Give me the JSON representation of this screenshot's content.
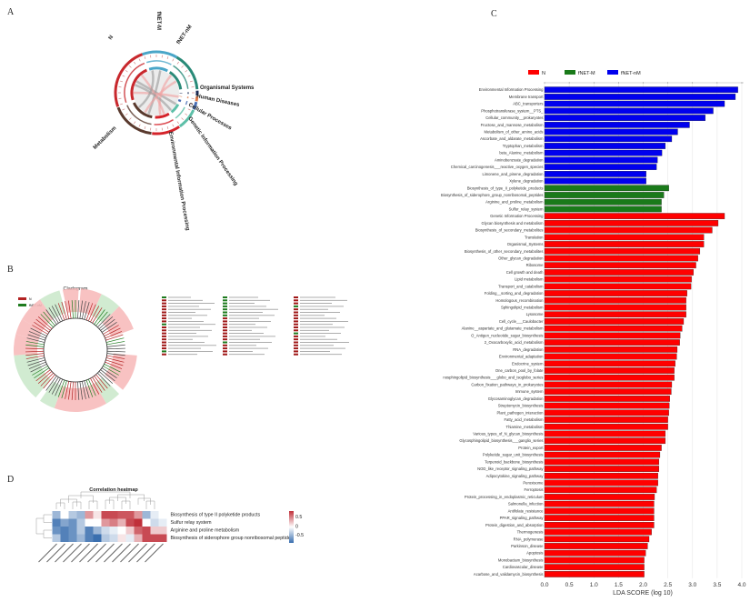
{
  "panels": {
    "a": "A",
    "b": "B",
    "c": "C",
    "d": "D"
  },
  "circos": {
    "labels": [
      "N",
      "fNET-M",
      "fNET-nM",
      "Organismal Systems",
      "Human Diseases",
      "Cellular Processes",
      "Genetic Information Processing",
      "Environmental Information Processing",
      "Metabolism"
    ]
  },
  "cladogram": {
    "title": "Cladogram",
    "legend": [
      {
        "label": "N",
        "color": "#b22222"
      },
      {
        "label": "fNET-nM",
        "color": "#1e7b1e"
      }
    ]
  },
  "heatmap": {
    "title": "Correlation heatmap",
    "rows": [
      "Biosynthesis of type II polyketide products",
      "Sulfur relay system",
      "Arginine and proline metabolism",
      "Biosynthesis of siderophore group nonribosomal peptides"
    ],
    "values": [
      [
        -0.4,
        0,
        -0.3,
        -0.4,
        0.4,
        0.1,
        0.7,
        0.7,
        0.65,
        0.65,
        0.4,
        -0.4,
        -0.1,
        0
      ],
      [
        -0.7,
        -0.5,
        -0.6,
        -0.3,
        0,
        0,
        0.4,
        0.5,
        0.3,
        0.7,
        0.8,
        0,
        -0.2,
        -0.1
      ],
      [
        -0.6,
        -0.7,
        -0.6,
        -0.3,
        -0.7,
        -0.4,
        -0.2,
        -0.1,
        0,
        0.2,
        0.6,
        0.7,
        0.2,
        0.2
      ],
      [
        -0.3,
        -0.7,
        -0.6,
        -0.4,
        -0.7,
        -0.8,
        -0.3,
        -0.2,
        0.1,
        -0.1,
        0.3,
        0.7,
        0.7,
        0.7
      ]
    ],
    "colorbar_ticks": [
      "0.5",
      "0",
      "-0.5"
    ],
    "colors": {
      "high": "#c0303a",
      "mid": "#ffffff",
      "low": "#3a6faf"
    }
  },
  "chart_data": {
    "type": "bar",
    "orientation": "horizontal",
    "xlabel": "LDA SCORE (log 10)",
    "xlim": [
      0,
      4.0
    ],
    "xticks": [
      "0.0",
      "0.5",
      "1.0",
      "1.5",
      "2.0",
      "2.5",
      "3.0",
      "3.5",
      "4.0"
    ],
    "grid": true,
    "legend_position": "top",
    "series": [
      {
        "name": "N",
        "color": "#ff0000"
      },
      {
        "name": "fNET-M",
        "color": "#1a7a1a"
      },
      {
        "name": "fNET-nM",
        "color": "#0000ee"
      }
    ],
    "bars": [
      {
        "label": "Environmental Information Processing",
        "group": "fNET-nM",
        "value": 3.92
      },
      {
        "label": "Membrane transport",
        "group": "fNET-nM",
        "value": 3.87
      },
      {
        "label": "ABC_transporters",
        "group": "fNET-nM",
        "value": 3.65
      },
      {
        "label": "Phosphotransferase_system__PTS_",
        "group": "fNET-nM",
        "value": 3.42
      },
      {
        "label": "Cellular_community__prokaryotes",
        "group": "fNET-nM",
        "value": 3.26
      },
      {
        "label": "Fructose_and_mannose_metabolism",
        "group": "fNET-nM",
        "value": 2.94
      },
      {
        "label": "Metabolism_of_other_amino_acids",
        "group": "fNET-nM",
        "value": 2.7
      },
      {
        "label": "Ascorbate_and_aldarate_metabolism",
        "group": "fNET-nM",
        "value": 2.58
      },
      {
        "label": "Tryptophan_metabolism",
        "group": "fNET-nM",
        "value": 2.45
      },
      {
        "label": "beta_Alanine_metabolism",
        "group": "fNET-nM",
        "value": 2.38
      },
      {
        "label": "Aminobenzoate_degradation",
        "group": "fNET-nM",
        "value": 2.29
      },
      {
        "label": "Chemical_carcinogenesis___reactive_oxygen_species",
        "group": "fNET-nM",
        "value": 2.27
      },
      {
        "label": "Limonene_and_pinene_degradation",
        "group": "fNET-nM",
        "value": 2.06
      },
      {
        "label": "Xylene_degradation",
        "group": "fNET-nM",
        "value": 2.06
      },
      {
        "label": "Biosynthesis_of_type_II_polyketide_products",
        "group": "fNET-M",
        "value": 2.52
      },
      {
        "label": "Biosynthesis_of_siderophore_group_nonribosomal_peptides",
        "group": "fNET-M",
        "value": 2.42
      },
      {
        "label": "Arginine_and_proline_metabolism",
        "group": "fNET-M",
        "value": 2.37
      },
      {
        "label": "Sulfur_relay_system",
        "group": "fNET-M",
        "value": 2.37
      },
      {
        "label": "Genetic Information Processing",
        "group": "N",
        "value": 3.65
      },
      {
        "label": "Glycan biosynthesis and metabolism",
        "group": "N",
        "value": 3.52
      },
      {
        "label": "Biosynthesis_of_secondary_metabolites",
        "group": "N",
        "value": 3.4
      },
      {
        "label": "Translation",
        "group": "N",
        "value": 3.23
      },
      {
        "label": "Organismal_Systems",
        "group": "N",
        "value": 3.23
      },
      {
        "label": "Biosynthesis_of_other_secondary_metabolites",
        "group": "N",
        "value": 3.15
      },
      {
        "label": "Other_glycan_degradation",
        "group": "N",
        "value": 3.11
      },
      {
        "label": "Ribosome",
        "group": "N",
        "value": 3.07
      },
      {
        "label": "Cell growth and death",
        "group": "N",
        "value": 3.02
      },
      {
        "label": "Lipid metabolism",
        "group": "N",
        "value": 2.98
      },
      {
        "label": "Transport_and_catabolism",
        "group": "N",
        "value": 2.97
      },
      {
        "label": "Folding__sorting_and_degradation",
        "group": "N",
        "value": 2.89
      },
      {
        "label": "Homologous_recombination",
        "group": "N",
        "value": 2.87
      },
      {
        "label": "Sphingolipid_metabolism",
        "group": "N",
        "value": 2.87
      },
      {
        "label": "Lysosome",
        "group": "N",
        "value": 2.87
      },
      {
        "label": "Cell_cycle___Caulobacter",
        "group": "N",
        "value": 2.82
      },
      {
        "label": "Alanine__aspartate_and_glutamate_metabolism",
        "group": "N",
        "value": 2.79
      },
      {
        "label": "O_Antigen_nucleotide_sugar_biosynthesis",
        "group": "N",
        "value": 2.75
      },
      {
        "label": "2_Oxocarboxylic_acid_metabolism",
        "group": "N",
        "value": 2.74
      },
      {
        "label": "RNA_degradation",
        "group": "N",
        "value": 2.69
      },
      {
        "label": "Environmental_adaptation",
        "group": "N",
        "value": 2.68
      },
      {
        "label": "Endocrine_system",
        "group": "N",
        "value": 2.65
      },
      {
        "label": "One_carbon_pool_by_folate",
        "group": "N",
        "value": 2.63
      },
      {
        "label": "nosphingolipid_biosynthesis___globo_and_isoglobo_series",
        "group": "N",
        "value": 2.63
      },
      {
        "label": "Carbon_fixation_pathways_in_prokaryotes",
        "group": "N",
        "value": 2.58
      },
      {
        "label": "Immune_system",
        "group": "N",
        "value": 2.57
      },
      {
        "label": "Glycosaminoglycan_degradation",
        "group": "N",
        "value": 2.54
      },
      {
        "label": "Streptomycin_biosynthesis",
        "group": "N",
        "value": 2.53
      },
      {
        "label": "Plant_pathogen_interaction",
        "group": "N",
        "value": 2.52
      },
      {
        "label": "Fatty_acid_metabolism",
        "group": "N",
        "value": 2.5
      },
      {
        "label": "Thiamine_metabolism",
        "group": "N",
        "value": 2.5
      },
      {
        "label": "Various_types_of_N_glycan_biosynthesis",
        "group": "N",
        "value": 2.45
      },
      {
        "label": "Glycosphingolipid_biosynthesis___ganglio_series",
        "group": "N",
        "value": 2.45
      },
      {
        "label": "Protein_export",
        "group": "N",
        "value": 2.37
      },
      {
        "label": "Polyketide_sugar_unit_biosynthesis",
        "group": "N",
        "value": 2.34
      },
      {
        "label": "Terpenoid_backbone_biosynthesis",
        "group": "N",
        "value": 2.32
      },
      {
        "label": "NOD_like_receptor_signaling_pathway",
        "group": "N",
        "value": 2.32
      },
      {
        "label": "Adipocytokine_signaling_pathway",
        "group": "N",
        "value": 2.3
      },
      {
        "label": "Peroxisome",
        "group": "N",
        "value": 2.3
      },
      {
        "label": "Ferroptosis",
        "group": "N",
        "value": 2.27
      },
      {
        "label": "Protein_processing_in_endoplasmic_reticulum",
        "group": "N",
        "value": 2.23
      },
      {
        "label": "Salmonella_infection",
        "group": "N",
        "value": 2.22
      },
      {
        "label": "Antifolate_resistance",
        "group": "N",
        "value": 2.22
      },
      {
        "label": "PPAR_signaling_pathway",
        "group": "N",
        "value": 2.22
      },
      {
        "label": "Protein_digestion_and_absorption",
        "group": "N",
        "value": 2.22
      },
      {
        "label": "Thermogenesis",
        "group": "N",
        "value": 2.17
      },
      {
        "label": "RNA_polymerase",
        "group": "N",
        "value": 2.12
      },
      {
        "label": "Parkinson_disease",
        "group": "N",
        "value": 2.09
      },
      {
        "label": "Apoptosis",
        "group": "N",
        "value": 2.05
      },
      {
        "label": "Monobactam_biosynthesis",
        "group": "N",
        "value": 2.02
      },
      {
        "label": "Cardiovascular_disease",
        "group": "N",
        "value": 2.02
      },
      {
        "label": "Acarbose_and_validamycin_biosynthesis",
        "group": "N",
        "value": 2.02
      }
    ]
  }
}
